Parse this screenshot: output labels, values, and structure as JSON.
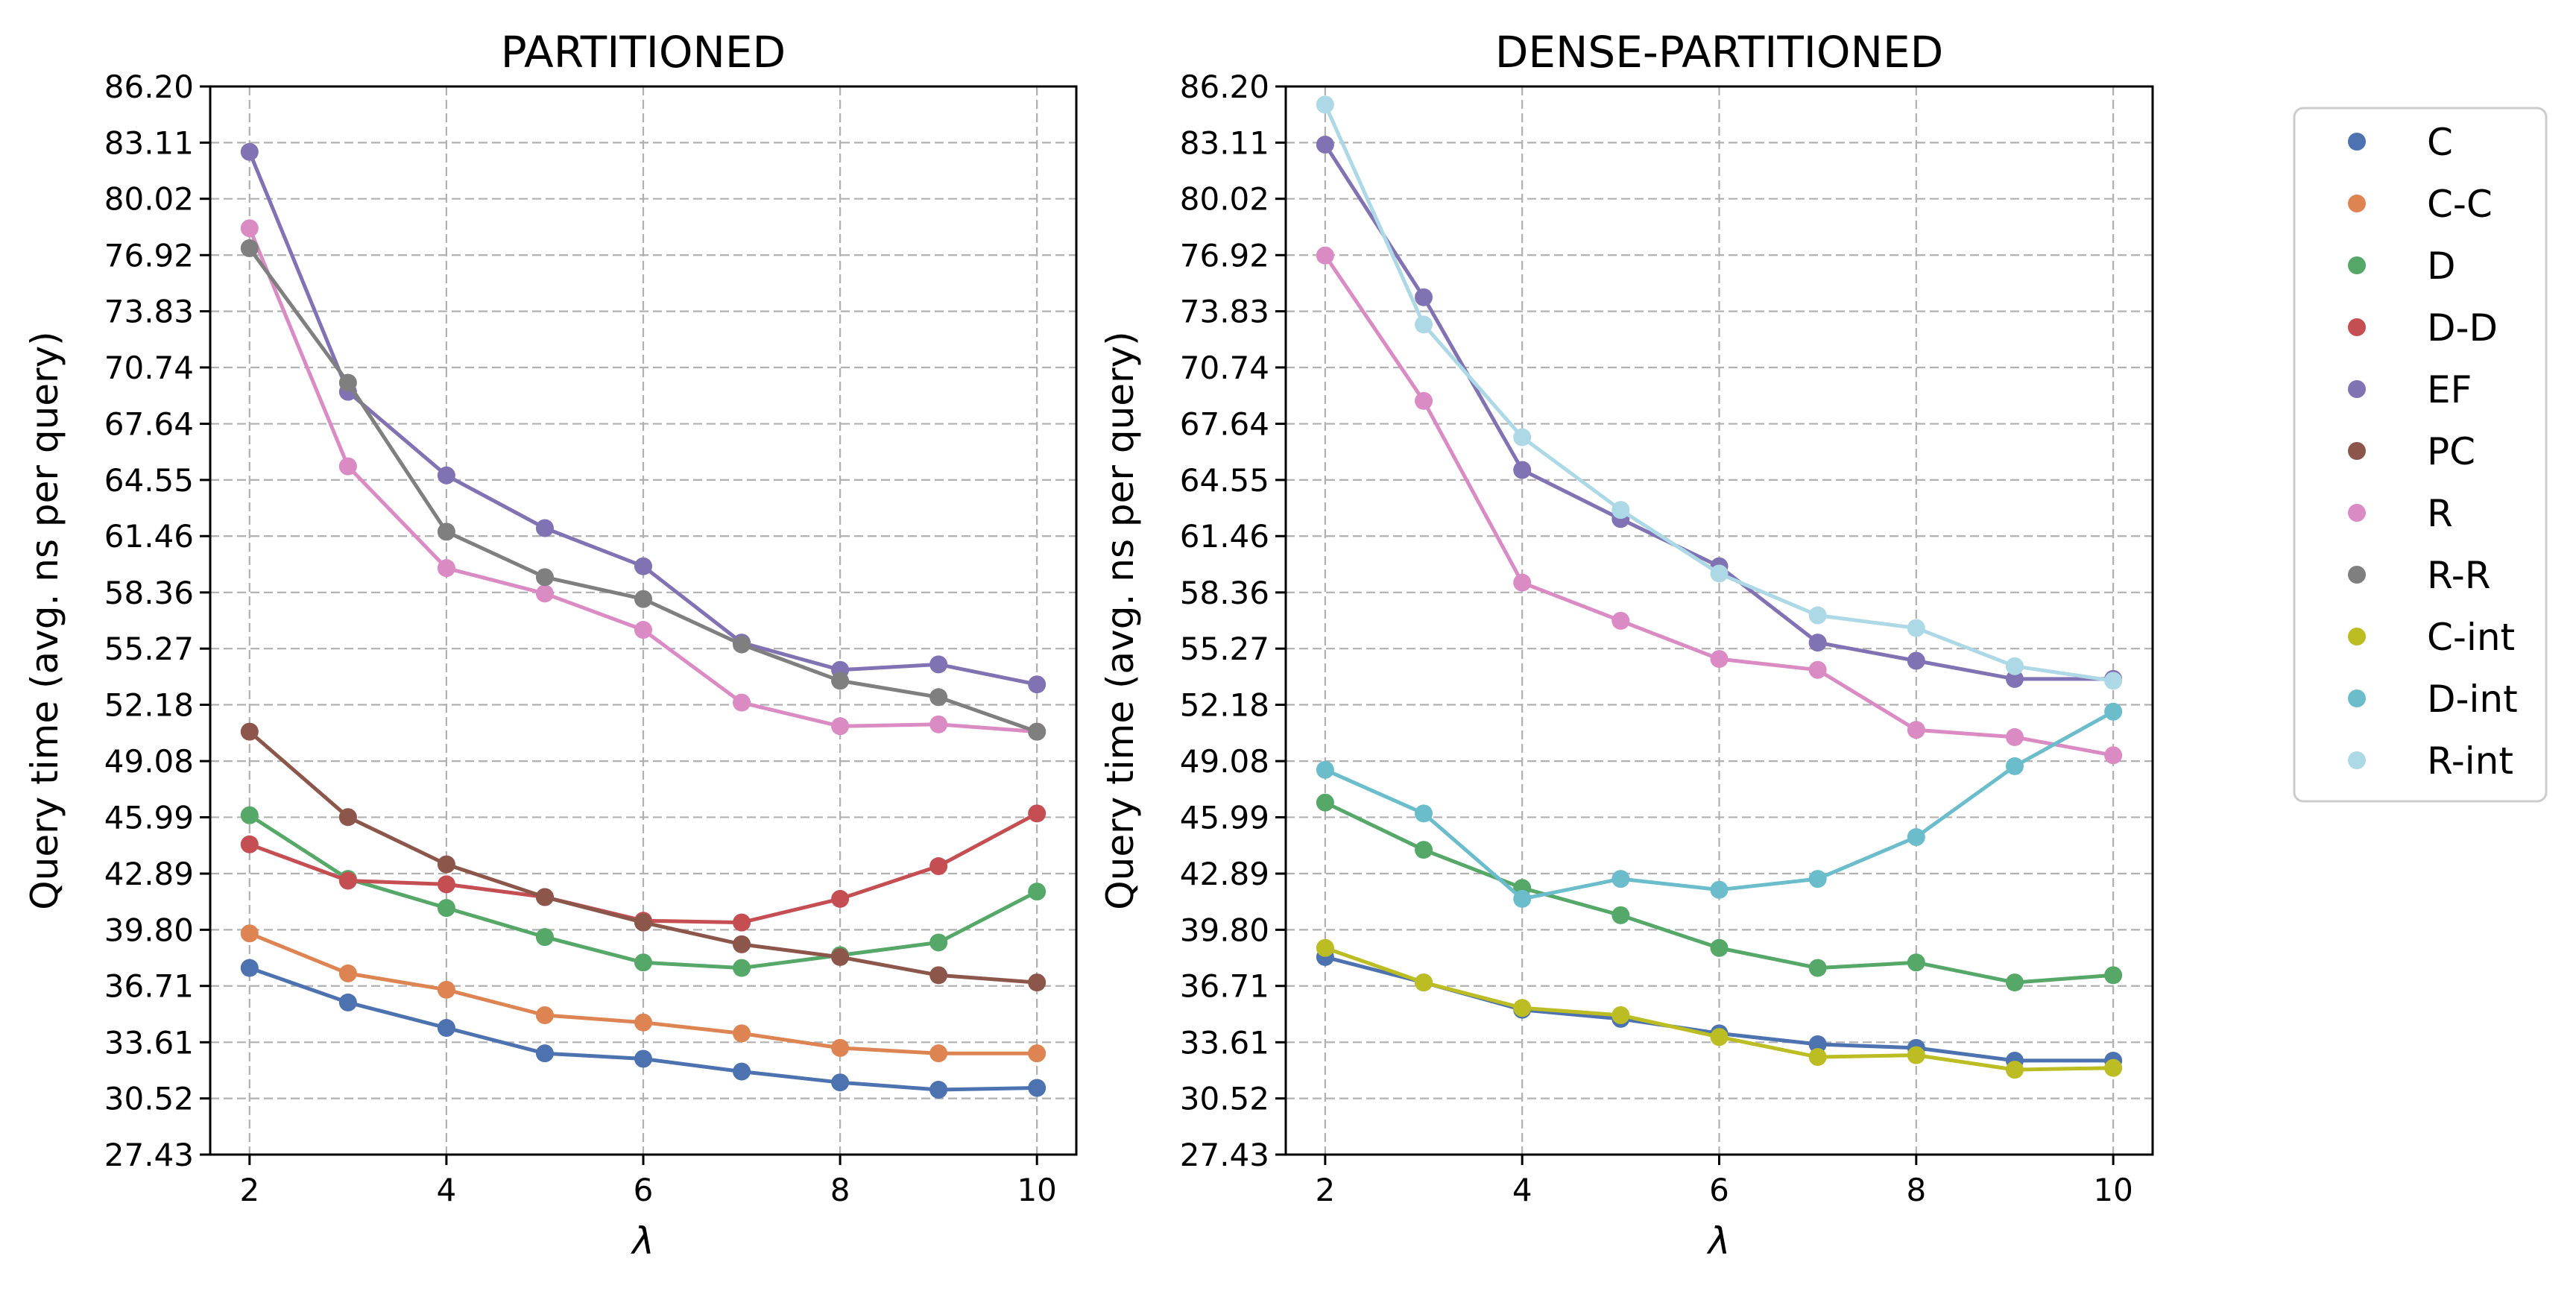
{
  "chart_data": [
    {
      "type": "line",
      "title": "PARTITIONED",
      "xlabel": "λ",
      "ylabel": "Query time (avg. ns per query)",
      "x": [
        2,
        3,
        4,
        5,
        6,
        7,
        8,
        9,
        10
      ],
      "xticks": [
        "2",
        "4",
        "6",
        "8",
        "10"
      ],
      "xlim": [
        1.6,
        10.4
      ],
      "ylim": [
        27.43,
        86.2
      ],
      "yticks": [
        "27.43",
        "30.52",
        "33.61",
        "36.71",
        "39.80",
        "42.89",
        "45.99",
        "49.08",
        "52.18",
        "55.27",
        "58.36",
        "61.46",
        "64.55",
        "67.64",
        "70.74",
        "73.83",
        "76.92",
        "80.02",
        "83.11",
        "86.20"
      ],
      "grid": true,
      "series": [
        {
          "name": "C",
          "color": "#4c72b0",
          "values": [
            37.7,
            35.8,
            34.4,
            33.0,
            32.7,
            32.0,
            31.4,
            31.0,
            31.1
          ]
        },
        {
          "name": "C-C",
          "color": "#dd8452",
          "values": [
            39.6,
            37.4,
            36.5,
            35.1,
            34.7,
            34.1,
            33.3,
            33.0,
            33.0
          ]
        },
        {
          "name": "D",
          "color": "#55a868",
          "values": [
            46.1,
            42.6,
            41.0,
            39.4,
            38.0,
            37.7,
            38.4,
            39.1,
            41.9
          ]
        },
        {
          "name": "D-D",
          "color": "#c44e52",
          "values": [
            44.5,
            42.5,
            42.3,
            41.6,
            40.3,
            40.2,
            41.5,
            43.3,
            46.2
          ]
        },
        {
          "name": "EF",
          "color": "#8172b3",
          "values": [
            82.6,
            69.4,
            64.8,
            61.9,
            59.8,
            55.6,
            54.1,
            54.4,
            53.3
          ]
        },
        {
          "name": "PC",
          "color": "#8c564b",
          "values": [
            50.7,
            46.0,
            43.4,
            41.6,
            40.2,
            39.0,
            38.3,
            37.3,
            36.9
          ]
        },
        {
          "name": "R",
          "color": "#da8bc3",
          "values": [
            78.4,
            65.3,
            59.7,
            58.3,
            56.3,
            52.3,
            51.0,
            51.1,
            50.7
          ]
        },
        {
          "name": "R-R",
          "color": "#7f7f7f",
          "values": [
            77.3,
            69.9,
            61.7,
            59.2,
            58.0,
            55.5,
            53.5,
            52.6,
            50.7
          ]
        }
      ]
    },
    {
      "type": "line",
      "title": "DENSE-PARTITIONED",
      "xlabel": "λ",
      "ylabel": "Query time (avg. ns per query)",
      "x": [
        2,
        3,
        4,
        5,
        6,
        7,
        8,
        9,
        10
      ],
      "xticks": [
        "2",
        "4",
        "6",
        "8",
        "10"
      ],
      "xlim": [
        1.6,
        10.4
      ],
      "ylim": [
        27.43,
        86.2
      ],
      "yticks": [
        "27.43",
        "30.52",
        "33.61",
        "36.71",
        "39.80",
        "42.89",
        "45.99",
        "49.08",
        "52.18",
        "55.27",
        "58.36",
        "61.46",
        "64.55",
        "67.64",
        "70.74",
        "73.83",
        "76.92",
        "80.02",
        "83.11",
        "86.20"
      ],
      "grid": true,
      "series": [
        {
          "name": "C",
          "color": "#4c72b0",
          "values": [
            38.3,
            36.9,
            35.4,
            34.9,
            34.1,
            33.5,
            33.3,
            32.6,
            32.6
          ]
        },
        {
          "name": "D",
          "color": "#55a868",
          "values": [
            46.8,
            44.2,
            42.1,
            40.6,
            38.8,
            37.7,
            38.0,
            36.9,
            37.3
          ]
        },
        {
          "name": "EF",
          "color": "#8172b3",
          "values": [
            83.0,
            74.6,
            65.1,
            62.4,
            59.8,
            55.6,
            54.6,
            53.6,
            53.6
          ]
        },
        {
          "name": "R",
          "color": "#da8bc3",
          "values": [
            76.9,
            68.9,
            58.9,
            56.8,
            54.7,
            54.1,
            50.8,
            50.4,
            49.4
          ]
        },
        {
          "name": "C-int",
          "color": "#bcbd22",
          "values": [
            38.8,
            36.9,
            35.5,
            35.1,
            33.9,
            32.8,
            32.9,
            32.1,
            32.2
          ]
        },
        {
          "name": "D-int",
          "color": "#6bbdcc",
          "values": [
            48.6,
            46.2,
            41.5,
            42.6,
            42.0,
            42.6,
            44.9,
            48.8,
            51.8
          ]
        },
        {
          "name": "R-int",
          "color": "#add8e6",
          "values": [
            85.2,
            73.1,
            66.9,
            62.9,
            59.4,
            57.1,
            56.4,
            54.3,
            53.5
          ]
        }
      ]
    }
  ],
  "legend": {
    "placement": "right",
    "entries": [
      {
        "name": "C",
        "color": "#4c72b0"
      },
      {
        "name": "C-C",
        "color": "#dd8452"
      },
      {
        "name": "D",
        "color": "#55a868"
      },
      {
        "name": "D-D",
        "color": "#c44e52"
      },
      {
        "name": "EF",
        "color": "#8172b3"
      },
      {
        "name": "PC",
        "color": "#8c564b"
      },
      {
        "name": "R",
        "color": "#da8bc3"
      },
      {
        "name": "R-R",
        "color": "#7f7f7f"
      },
      {
        "name": "C-int",
        "color": "#bcbd22"
      },
      {
        "name": "D-int",
        "color": "#6bbdcc"
      },
      {
        "name": "R-int",
        "color": "#add8e6"
      }
    ]
  }
}
